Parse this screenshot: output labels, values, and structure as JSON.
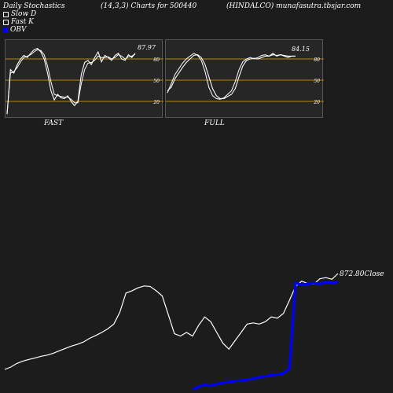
{
  "header": {
    "left": "Daily Stochastics",
    "middle": "(14,3,3) Charts for 500440",
    "right": "(HINDALCO) munafasutra.tbsjar.com"
  },
  "legend": {
    "slow_d": "Slow  D",
    "fast_k": "Fast K",
    "obv": "OBV"
  },
  "colors": {
    "background": "#1c1c1c",
    "panel_background": "#262626",
    "level_lines": "#b8860b",
    "stoch_lines": "#ffffff",
    "obv_line": "#0000ff",
    "price_line": "#ffffff"
  },
  "panels": {
    "fast": {
      "label": "FAST",
      "last_value": "87.97"
    },
    "full": {
      "label": "FULL",
      "last_value": "84.15"
    }
  },
  "main": {
    "close_label": "872.80Close"
  },
  "chart_data": [
    {
      "type": "line",
      "panel": "FAST",
      "ylim": [
        0,
        100
      ],
      "levels": [
        20,
        50,
        80
      ],
      "level_labels": [
        "20",
        "50",
        "80"
      ],
      "series": [
        {
          "name": "Fast K",
          "values": [
            2,
            65,
            60,
            72,
            80,
            85,
            82,
            88,
            93,
            95,
            90,
            80,
            60,
            35,
            22,
            30,
            25,
            24,
            28,
            20,
            14,
            20,
            58,
            75,
            78,
            72,
            82,
            90,
            76,
            85,
            82,
            78,
            85,
            88,
            80,
            78,
            86,
            82,
            88
          ]
        },
        {
          "name": "Slow  D",
          "values": [
            2,
            60,
            62,
            68,
            76,
            82,
            84,
            86,
            90,
            93,
            92,
            86,
            70,
            48,
            30,
            28,
            27,
            26,
            26,
            23,
            18,
            18,
            45,
            65,
            74,
            75,
            78,
            84,
            82,
            82,
            83,
            80,
            82,
            86,
            84,
            80,
            83,
            84,
            87
          ]
        }
      ]
    },
    {
      "type": "line",
      "panel": "FULL",
      "ylim": [
        0,
        100
      ],
      "levels": [
        20,
        50,
        80
      ],
      "level_labels": [
        "20",
        "50",
        "80"
      ],
      "series": [
        {
          "name": "Slow  D",
          "values": [
            35,
            40,
            52,
            60,
            68,
            75,
            80,
            85,
            86,
            82,
            72,
            55,
            38,
            28,
            24,
            24,
            27,
            30,
            38,
            55,
            70,
            78,
            80,
            81,
            80,
            82,
            84,
            84,
            86,
            85,
            86,
            85,
            84,
            84,
            84
          ]
        },
        {
          "name": "Fast K",
          "values": [
            32,
            45,
            58,
            66,
            74,
            80,
            84,
            88,
            85,
            78,
            62,
            40,
            28,
            24,
            23,
            25,
            30,
            35,
            48,
            65,
            76,
            80,
            82,
            80,
            82,
            85,
            86,
            84,
            88,
            84,
            86,
            84,
            82,
            84,
            84
          ]
        }
      ]
    },
    {
      "type": "line",
      "panel": "PRICE_OBV",
      "price": [
        470,
        480,
        495,
        505,
        512,
        518,
        525,
        530,
        538,
        548,
        558,
        568,
        575,
        585,
        600,
        612,
        625,
        640,
        660,
        710,
        790,
        800,
        812,
        820,
        818,
        800,
        778,
        700,
        620,
        610,
        625,
        610,
        655,
        690,
        670,
        625,
        580,
        555,
        590,
        625,
        660,
        665,
        660,
        670,
        690,
        685,
        705,
        760,
        818,
        840,
        830,
        828,
        850,
        855,
        848,
        872
      ],
      "price_ylim": [
        450,
        900
      ],
      "obv": [
        -7.0,
        -7.0,
        -7.0,
        -7.0,
        -7.0,
        -7.0,
        -7.0,
        -7.0,
        -7.0,
        -7.0,
        -7.0,
        -7.0,
        -7.0,
        -7.0,
        -7.0,
        -7.0,
        -7.0,
        -7.0,
        -7.0,
        -7.0,
        -7.0,
        -7.0,
        -7.0,
        -7.0,
        -7.0,
        -7.0,
        -7.0,
        -7.0,
        -7.0,
        -7.0,
        -7.0,
        -1.5,
        0.0,
        1.0,
        0.5,
        1.5,
        2.0,
        2.5,
        3.0,
        3.2,
        3.8,
        4.2,
        5.0,
        5.5,
        6.0,
        6.5,
        7.0,
        9.5,
        55.0,
        54.0,
        54.5,
        55.0,
        54.5,
        55.5,
        55.0,
        55.5
      ],
      "obv_ylim": [
        0,
        60
      ]
    }
  ]
}
